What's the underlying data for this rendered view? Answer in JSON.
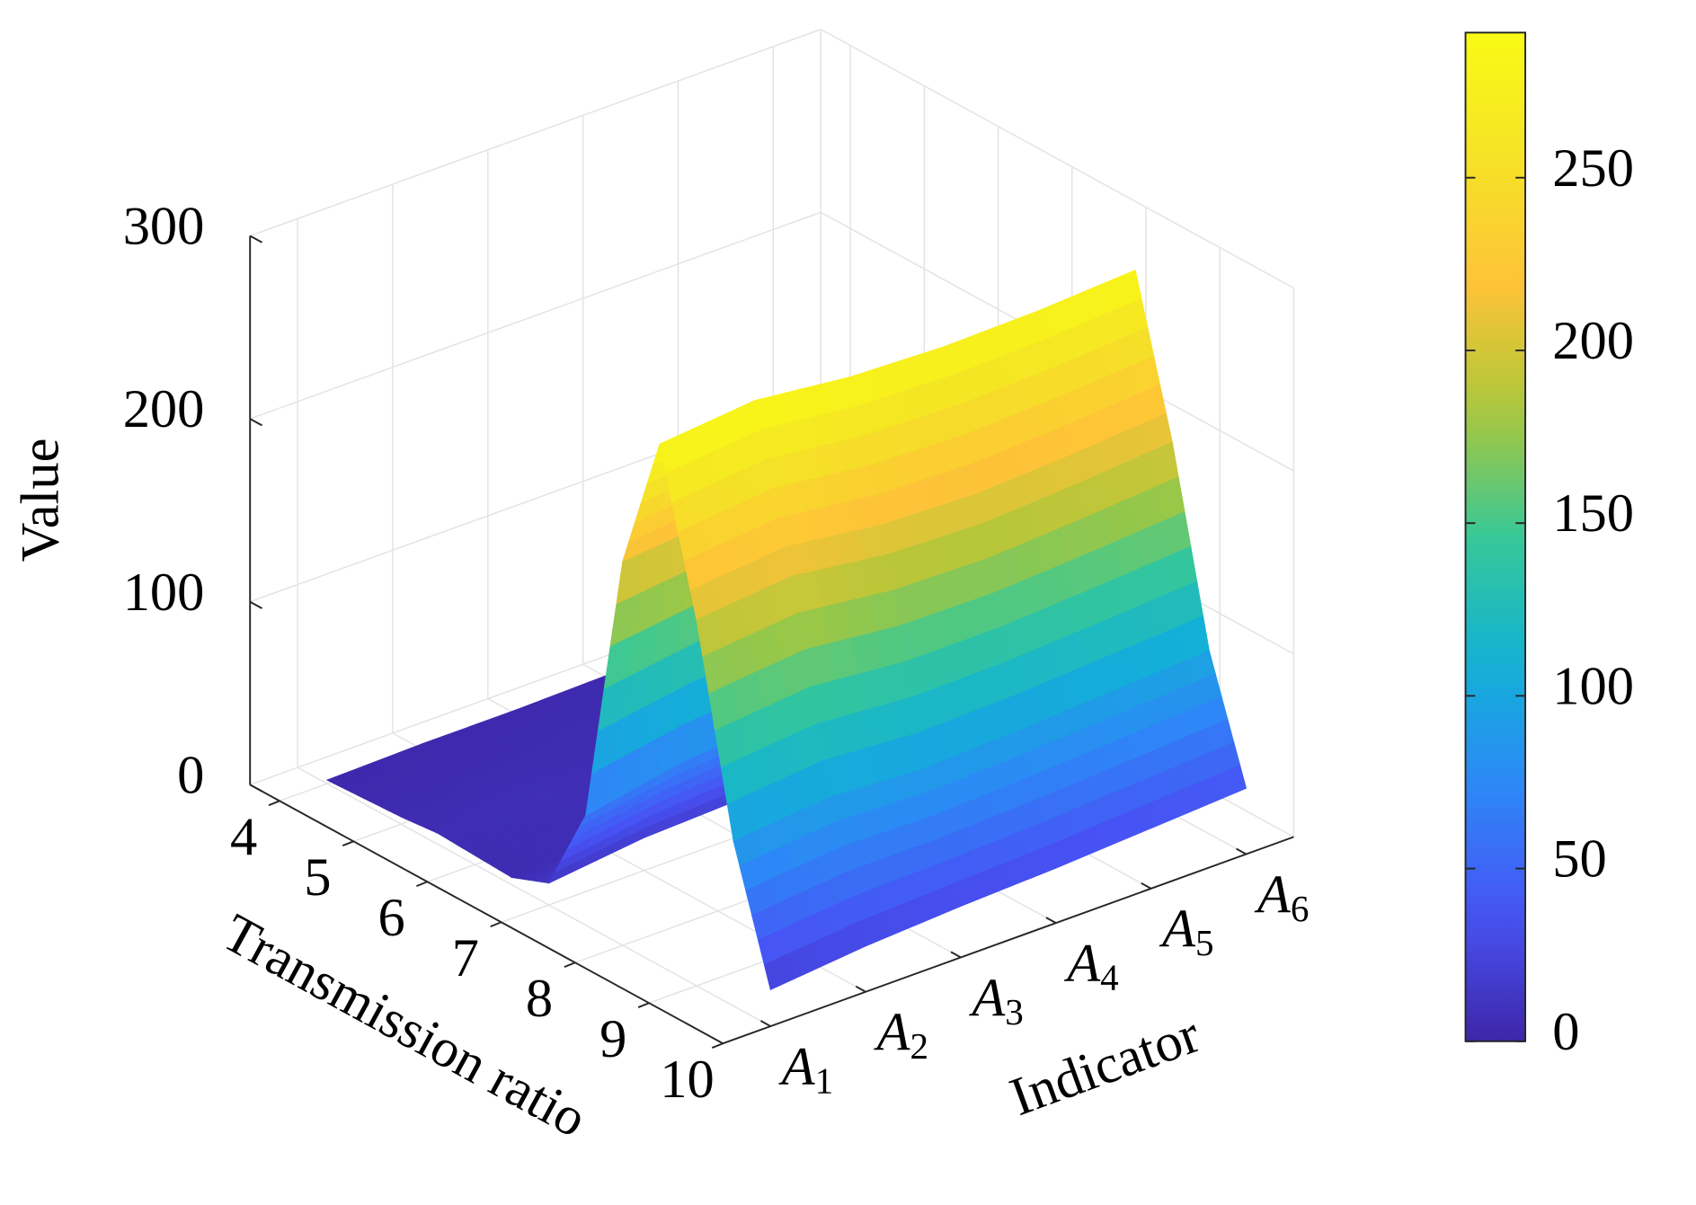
{
  "chart_data": {
    "type": "surface",
    "xlabel": "Transmission ratio",
    "ylabel": "Indicator",
    "zlabel": "Value",
    "x": [
      4,
      4.5,
      5,
      5.5,
      6,
      6.5,
      7,
      7.5,
      8,
      8.5,
      9,
      9.5,
      10
    ],
    "categories": [
      "A1",
      "A2",
      "A3",
      "A4",
      "A5",
      "A6"
    ],
    "z": [
      [
        2,
        3,
        4,
        6,
        5,
        4,
        12,
        60,
        210,
        285,
        200,
        90,
        20
      ],
      [
        3,
        3,
        5,
        7,
        6,
        8,
        18,
        70,
        215,
        290,
        205,
        95,
        25
      ],
      [
        3,
        4,
        5,
        6,
        7,
        9,
        20,
        75,
        212,
        284,
        198,
        92,
        28
      ],
      [
        4,
        4,
        6,
        7,
        8,
        10,
        22,
        78,
        208,
        282,
        196,
        94,
        30
      ],
      [
        4,
        5,
        6,
        8,
        9,
        11,
        24,
        80,
        210,
        283,
        199,
        97,
        33
      ],
      [
        5,
        5,
        7,
        8,
        10,
        12,
        25,
        82,
        214,
        286,
        203,
        100,
        36
      ]
    ],
    "xlim": [
      3.6,
      10
    ],
    "ylim": [
      0.5,
      6.5
    ],
    "zlim": [
      0,
      300
    ],
    "xticks": [
      4,
      5,
      6,
      7,
      8,
      9,
      10
    ],
    "zticks": [
      0,
      100,
      200,
      300
    ],
    "colormap": "parula",
    "grid": true,
    "colorbar": {
      "clim": [
        0,
        292
      ],
      "ticks": [
        0,
        50,
        100,
        150,
        200,
        250
      ]
    }
  }
}
